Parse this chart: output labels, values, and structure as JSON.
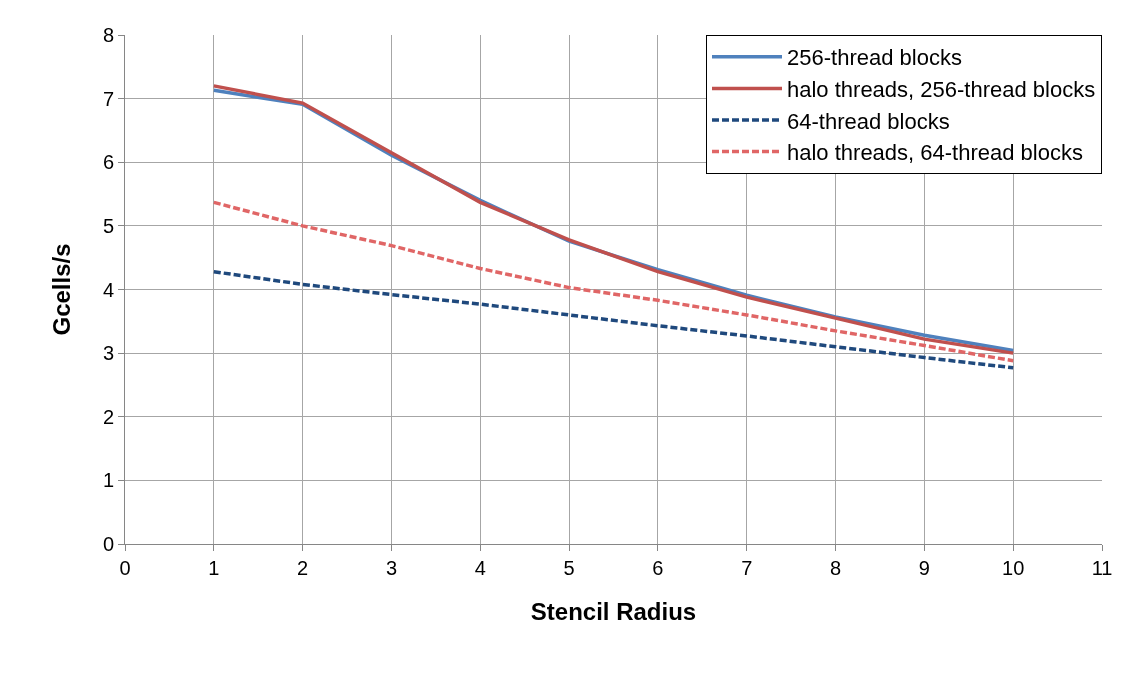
{
  "chart_data": {
    "type": "line",
    "xlabel": "Stencil Radius",
    "ylabel": "Gcells/s",
    "x": [
      1,
      2,
      3,
      4,
      5,
      6,
      7,
      8,
      9,
      10
    ],
    "series": [
      {
        "name": "256-thread blocks",
        "color": "#4f81bd",
        "line_style": "solid",
        "values": [
          7.13,
          6.91,
          6.11,
          5.4,
          4.76,
          4.31,
          3.91,
          3.57,
          3.28,
          3.04
        ]
      },
      {
        "name": "halo threads, 256-thread blocks",
        "color": "#c0504d",
        "line_style": "solid",
        "values": [
          7.2,
          6.93,
          6.15,
          5.37,
          4.78,
          4.28,
          3.88,
          3.55,
          3.22,
          3.0
        ]
      },
      {
        "name": "64-thread blocks",
        "color": "#1f497d",
        "line_style": "dashed",
        "values": [
          4.28,
          4.08,
          3.92,
          3.77,
          3.6,
          3.43,
          3.27,
          3.1,
          2.93,
          2.77
        ]
      },
      {
        "name": "halo threads, 64-thread blocks",
        "color": "#e06666",
        "line_style": "dashed",
        "values": [
          5.37,
          5.0,
          4.69,
          4.33,
          4.03,
          3.83,
          3.6,
          3.35,
          3.12,
          2.88
        ]
      }
    ],
    "xlim": [
      0,
      11
    ],
    "xticks": [
      0,
      1,
      2,
      3,
      4,
      5,
      6,
      7,
      8,
      9,
      10,
      11
    ],
    "ylim": [
      0,
      8
    ],
    "yticks": [
      0,
      1,
      2,
      3,
      4,
      5,
      6,
      7,
      8
    ],
    "grid": true,
    "legend": "top right",
    "marker": "none"
  }
}
